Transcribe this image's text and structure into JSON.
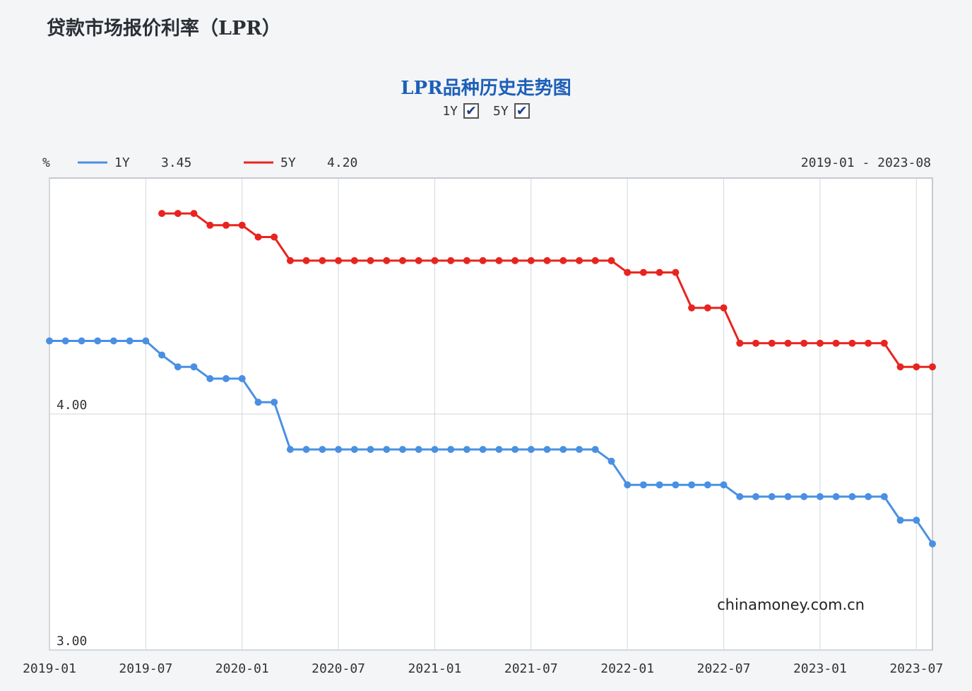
{
  "page": {
    "title": "贷款市场报价利率（LPR）"
  },
  "controls": {
    "toggle_1y": {
      "label": "1Y",
      "checked": true
    },
    "toggle_5y": {
      "label": "5Y",
      "checked": true
    }
  },
  "legend": {
    "unit": "%",
    "items": [
      {
        "label": "1Y",
        "value": "3.45",
        "color": "#4a90e2"
      },
      {
        "label": "5Y",
        "value": "4.20",
        "color": "#e8241f"
      }
    ],
    "range": "2019-01 - 2023-08"
  },
  "watermark": "chinamoney.com.cn",
  "chart_data": {
    "type": "line",
    "title": "LPR品种历史走势图",
    "xlabel": "",
    "ylabel": "%",
    "ylim": [
      3.0,
      5.0
    ],
    "yticks": [
      3.0,
      4.0
    ],
    "ytick_labels": [
      "3.00",
      "4.00"
    ],
    "x_tick_labels": [
      "2019-01",
      "2019-07",
      "2020-01",
      "2020-07",
      "2021-01",
      "2021-07",
      "2022-01",
      "2022-07",
      "2023-01",
      "2023-07"
    ],
    "xlim": [
      "2019-01",
      "2023-08"
    ],
    "grid": true,
    "series": [
      {
        "name": "1Y",
        "color": "#4a90e2",
        "points": [
          [
            "2019-01",
            4.31
          ],
          [
            "2019-02",
            4.31
          ],
          [
            "2019-03",
            4.31
          ],
          [
            "2019-04",
            4.31
          ],
          [
            "2019-05",
            4.31
          ],
          [
            "2019-06",
            4.31
          ],
          [
            "2019-07",
            4.31
          ],
          [
            "2019-08",
            4.25
          ],
          [
            "2019-09",
            4.2
          ],
          [
            "2019-10",
            4.2
          ],
          [
            "2019-11",
            4.15
          ],
          [
            "2019-12",
            4.15
          ],
          [
            "2020-01",
            4.15
          ],
          [
            "2020-02",
            4.05
          ],
          [
            "2020-03",
            4.05
          ],
          [
            "2020-04",
            3.85
          ],
          [
            "2020-05",
            3.85
          ],
          [
            "2020-06",
            3.85
          ],
          [
            "2020-07",
            3.85
          ],
          [
            "2020-08",
            3.85
          ],
          [
            "2020-09",
            3.85
          ],
          [
            "2020-10",
            3.85
          ],
          [
            "2020-11",
            3.85
          ],
          [
            "2020-12",
            3.85
          ],
          [
            "2021-01",
            3.85
          ],
          [
            "2021-02",
            3.85
          ],
          [
            "2021-03",
            3.85
          ],
          [
            "2021-04",
            3.85
          ],
          [
            "2021-05",
            3.85
          ],
          [
            "2021-06",
            3.85
          ],
          [
            "2021-07",
            3.85
          ],
          [
            "2021-08",
            3.85
          ],
          [
            "2021-09",
            3.85
          ],
          [
            "2021-10",
            3.85
          ],
          [
            "2021-11",
            3.85
          ],
          [
            "2021-12",
            3.8
          ],
          [
            "2022-01",
            3.7
          ],
          [
            "2022-02",
            3.7
          ],
          [
            "2022-03",
            3.7
          ],
          [
            "2022-04",
            3.7
          ],
          [
            "2022-05",
            3.7
          ],
          [
            "2022-06",
            3.7
          ],
          [
            "2022-07",
            3.7
          ],
          [
            "2022-08",
            3.65
          ],
          [
            "2022-09",
            3.65
          ],
          [
            "2022-10",
            3.65
          ],
          [
            "2022-11",
            3.65
          ],
          [
            "2022-12",
            3.65
          ],
          [
            "2023-01",
            3.65
          ],
          [
            "2023-02",
            3.65
          ],
          [
            "2023-03",
            3.65
          ],
          [
            "2023-04",
            3.65
          ],
          [
            "2023-05",
            3.65
          ],
          [
            "2023-06",
            3.55
          ],
          [
            "2023-07",
            3.55
          ],
          [
            "2023-08",
            3.45
          ]
        ]
      },
      {
        "name": "5Y",
        "color": "#e8241f",
        "points": [
          [
            "2019-08",
            4.85
          ],
          [
            "2019-09",
            4.85
          ],
          [
            "2019-10",
            4.85
          ],
          [
            "2019-11",
            4.8
          ],
          [
            "2019-12",
            4.8
          ],
          [
            "2020-01",
            4.8
          ],
          [
            "2020-02",
            4.75
          ],
          [
            "2020-03",
            4.75
          ],
          [
            "2020-04",
            4.65
          ],
          [
            "2020-05",
            4.65
          ],
          [
            "2020-06",
            4.65
          ],
          [
            "2020-07",
            4.65
          ],
          [
            "2020-08",
            4.65
          ],
          [
            "2020-09",
            4.65
          ],
          [
            "2020-10",
            4.65
          ],
          [
            "2020-11",
            4.65
          ],
          [
            "2020-12",
            4.65
          ],
          [
            "2021-01",
            4.65
          ],
          [
            "2021-02",
            4.65
          ],
          [
            "2021-03",
            4.65
          ],
          [
            "2021-04",
            4.65
          ],
          [
            "2021-05",
            4.65
          ],
          [
            "2021-06",
            4.65
          ],
          [
            "2021-07",
            4.65
          ],
          [
            "2021-08",
            4.65
          ],
          [
            "2021-09",
            4.65
          ],
          [
            "2021-10",
            4.65
          ],
          [
            "2021-11",
            4.65
          ],
          [
            "2021-12",
            4.65
          ],
          [
            "2022-01",
            4.6
          ],
          [
            "2022-02",
            4.6
          ],
          [
            "2022-03",
            4.6
          ],
          [
            "2022-04",
            4.6
          ],
          [
            "2022-05",
            4.45
          ],
          [
            "2022-06",
            4.45
          ],
          [
            "2022-07",
            4.45
          ],
          [
            "2022-08",
            4.3
          ],
          [
            "2022-09",
            4.3
          ],
          [
            "2022-10",
            4.3
          ],
          [
            "2022-11",
            4.3
          ],
          [
            "2022-12",
            4.3
          ],
          [
            "2023-01",
            4.3
          ],
          [
            "2023-02",
            4.3
          ],
          [
            "2023-03",
            4.3
          ],
          [
            "2023-04",
            4.3
          ],
          [
            "2023-05",
            4.3
          ],
          [
            "2023-06",
            4.2
          ],
          [
            "2023-07",
            4.2
          ],
          [
            "2023-08",
            4.2
          ]
        ]
      }
    ]
  }
}
